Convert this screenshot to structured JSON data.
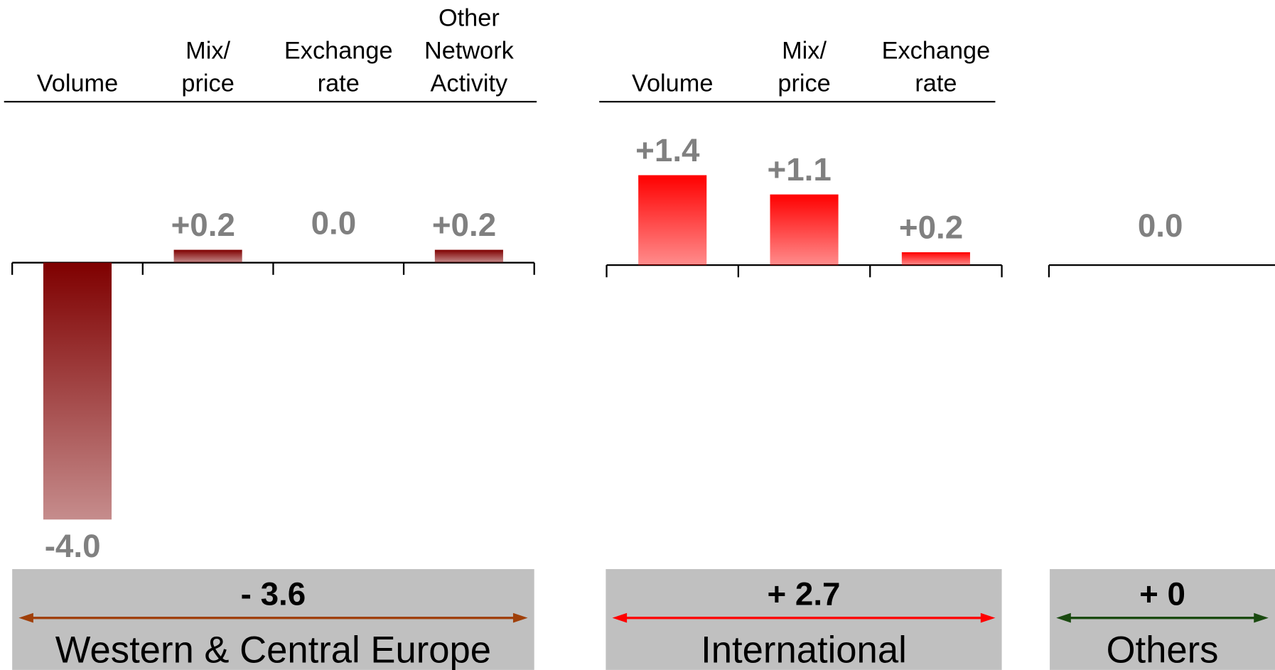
{
  "chart_data": [
    {
      "type": "bar",
      "categories": [
        [
          "Volume"
        ],
        [
          "Mix/",
          "price"
        ],
        [
          "Exchange",
          "rate"
        ],
        [
          "Other",
          "Network",
          "Activity"
        ]
      ],
      "values": [
        -4.0,
        0.2,
        0.0,
        0.2
      ],
      "value_labels": [
        "-4.0",
        "+0.2",
        "0.0",
        "+0.2"
      ],
      "color": "#7f0000",
      "total": "- 3.6",
      "region": "Western & Central Europe",
      "arrow_color": "#a0400a"
    },
    {
      "type": "bar",
      "categories": [
        [
          "Volume"
        ],
        [
          "Mix/",
          "price"
        ],
        [
          "Exchange",
          "rate"
        ]
      ],
      "values": [
        1.4,
        1.1,
        0.2
      ],
      "value_labels": [
        "+1.4",
        "+1.1",
        "+0.2"
      ],
      "color": "#ff0000",
      "total": "+ 2.7",
      "region": "International",
      "arrow_color": "#ff0000"
    },
    {
      "type": "bar",
      "categories": [
        null
      ],
      "values": [
        0.0
      ],
      "value_labels": [
        "0.0"
      ],
      "color": "#008000",
      "total": "+ 0",
      "region": "Others",
      "arrow_color": "#1a4a10"
    }
  ]
}
